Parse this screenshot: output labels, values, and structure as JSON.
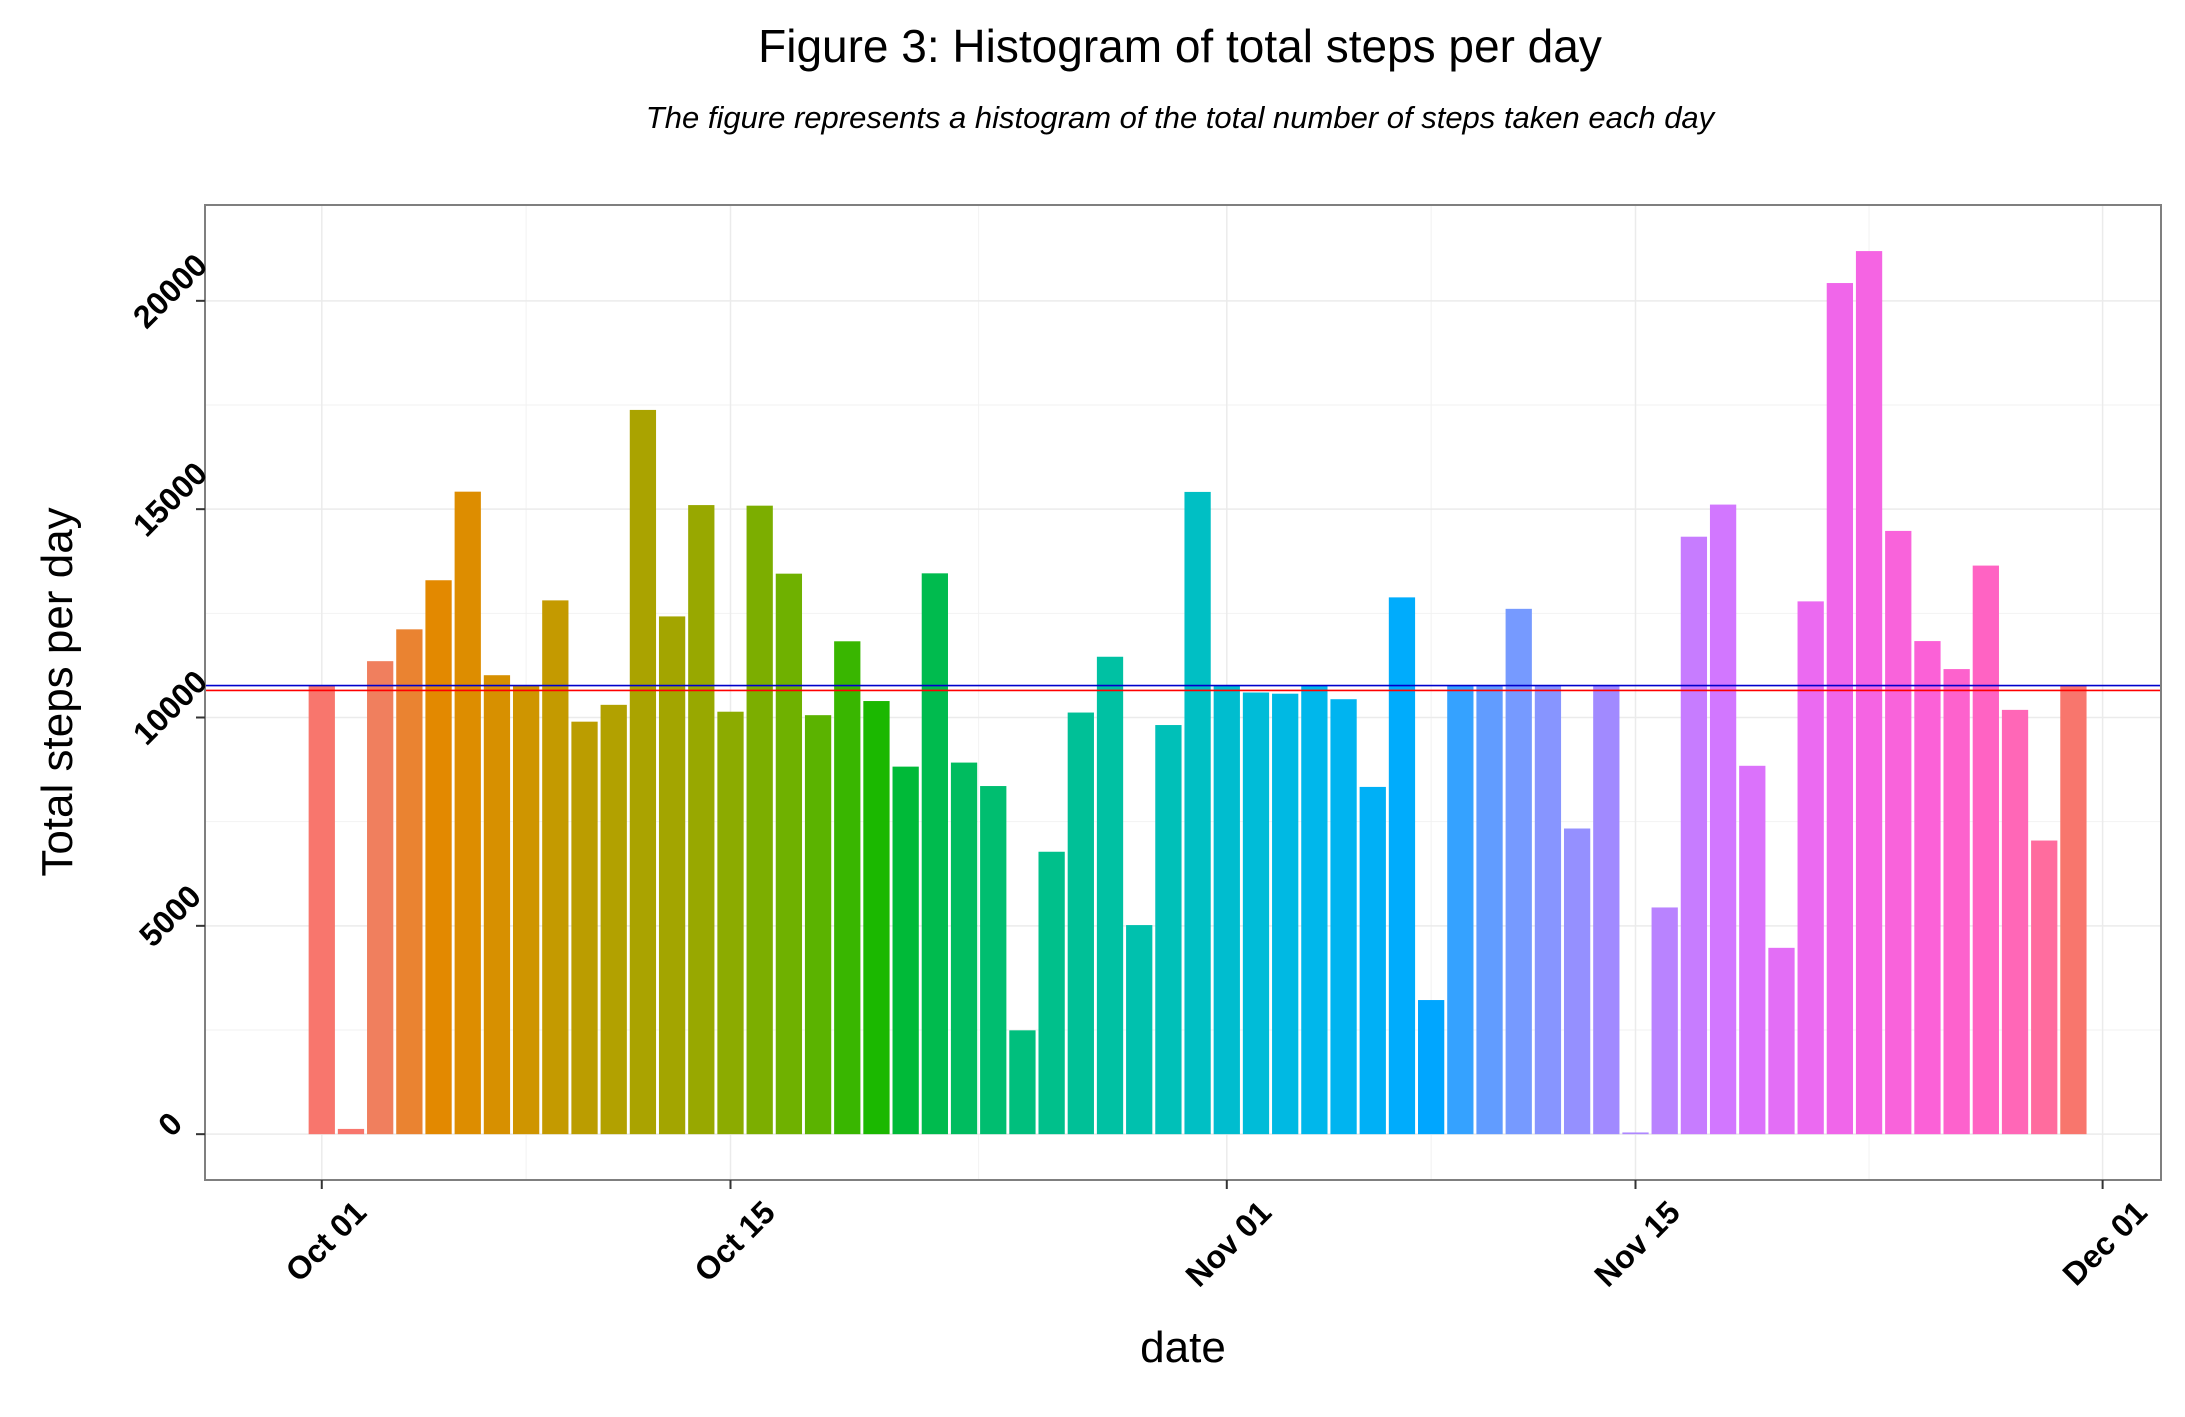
{
  "chart_data": {
    "type": "bar",
    "title": "Figure 3: Histogram of total steps per day",
    "subtitle": "The figure represents a histogram of the total number of steps taken each day",
    "xlabel": "date",
    "ylabel": "Total steps per day",
    "x_axis_type": "date",
    "x_tick_labels": [
      "Oct 01",
      "Oct 15",
      "Nov 01",
      "Nov 15",
      "Dec 01"
    ],
    "x_tick_dates": [
      "2012-10-01",
      "2012-10-15",
      "2012-11-01",
      "2012-11-15",
      "2012-12-01"
    ],
    "xlim": [
      "2012-09-27",
      "2012-12-03"
    ],
    "y_ticks": [
      0,
      5000,
      10000,
      15000,
      20000
    ],
    "ylim": [
      -1100,
      22300
    ],
    "grid": true,
    "legend": "none",
    "dates": [
      "2012-10-01",
      "2012-10-02",
      "2012-10-03",
      "2012-10-04",
      "2012-10-05",
      "2012-10-06",
      "2012-10-07",
      "2012-10-08",
      "2012-10-09",
      "2012-10-10",
      "2012-10-11",
      "2012-10-12",
      "2012-10-13",
      "2012-10-14",
      "2012-10-15",
      "2012-10-16",
      "2012-10-17",
      "2012-10-18",
      "2012-10-19",
      "2012-10-20",
      "2012-10-21",
      "2012-10-22",
      "2012-10-23",
      "2012-10-24",
      "2012-10-25",
      "2012-10-26",
      "2012-10-27",
      "2012-10-28",
      "2012-10-29",
      "2012-10-30",
      "2012-10-31",
      "2012-11-01",
      "2012-11-02",
      "2012-11-03",
      "2012-11-04",
      "2012-11-05",
      "2012-11-06",
      "2012-11-07",
      "2012-11-08",
      "2012-11-09",
      "2012-11-10",
      "2012-11-11",
      "2012-11-12",
      "2012-11-13",
      "2012-11-14",
      "2012-11-15",
      "2012-11-16",
      "2012-11-17",
      "2012-11-18",
      "2012-11-19",
      "2012-11-20",
      "2012-11-21",
      "2012-11-22",
      "2012-11-23",
      "2012-11-24",
      "2012-11-25",
      "2012-11-26",
      "2012-11-27",
      "2012-11-28",
      "2012-11-29",
      "2012-11-30"
    ],
    "values": [
      10766,
      126,
      11352,
      12116,
      13294,
      15420,
      11015,
      10766,
      12811,
      9900,
      10304,
      17382,
      12426,
      15098,
      10139,
      15084,
      13452,
      10056,
      11829,
      10395,
      8821,
      13460,
      8918,
      8355,
      2492,
      6778,
      10119,
      11458,
      5018,
      9819,
      15414,
      10766,
      10600,
      10571,
      10766,
      10439,
      8334,
      12883,
      3219,
      10766,
      10766,
      12608,
      10765,
      7336,
      10766,
      41,
      5441,
      14339,
      15110,
      8841,
      4472,
      12787,
      20427,
      21194,
      14478,
      11834,
      11162,
      13646,
      10183,
      7047,
      10766
    ],
    "colors": [
      "#F8766D",
      "#F8766D",
      "#F07F5E",
      "#EA8331",
      "#E38900",
      "#DD8D00",
      "#D79000",
      "#CF9500",
      "#C49A00",
      "#BB9D00",
      "#B2A100",
      "#AAA300",
      "#A3A500",
      "#98A800",
      "#8CAB00",
      "#7CAE00",
      "#6FB100",
      "#5BB300",
      "#39B600",
      "#1BB800",
      "#00BA38",
      "#00BB4E",
      "#00BC5F",
      "#00BE70",
      "#00BF7D",
      "#00C08B",
      "#00C097",
      "#00C1A3",
      "#00C1AE",
      "#00C0B8",
      "#00BFC4",
      "#00BDCF",
      "#00BCD8",
      "#00B9E3",
      "#00B7EB",
      "#00B4F0",
      "#00B0F6",
      "#00ACFC",
      "#00A6FF",
      "#35A2FF",
      "#619CFF",
      "#769AFF",
      "#8795FF",
      "#9590FF",
      "#A18AFF",
      "#AE87FF",
      "#B983FF",
      "#C77CFF",
      "#D277FF",
      "#DB72FB",
      "#E36EF6",
      "#EB6AF1",
      "#F066EA",
      "#F564E3",
      "#F963DB",
      "#FB61D7",
      "#FD62CD",
      "#FF63C3",
      "#FF67B7",
      "#FF6C9E",
      "#F8766D"
    ],
    "reference_lines": [
      {
        "value": 10766,
        "color": "#0000CC"
      },
      {
        "value": 10650,
        "color": "#FF0000"
      }
    ]
  }
}
